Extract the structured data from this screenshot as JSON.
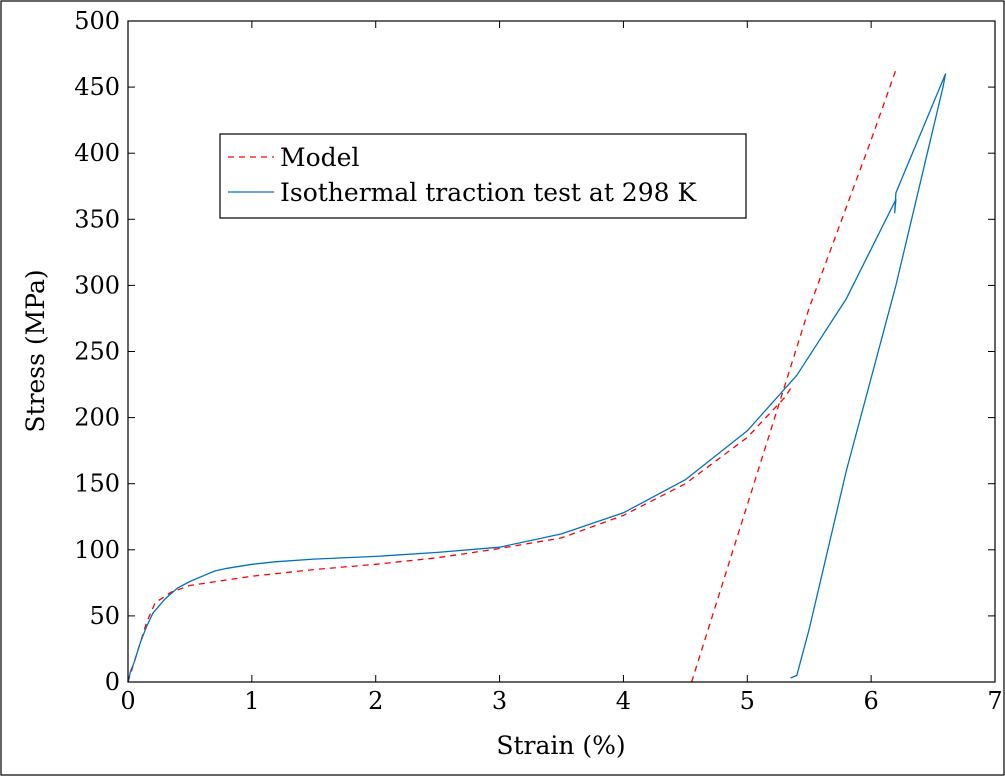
{
  "chart_data": {
    "type": "line",
    "xlabel": "Strain (%)",
    "ylabel": "Stress (MPa)",
    "xlim": [
      0,
      7
    ],
    "ylim": [
      0,
      500
    ],
    "x_ticks": [
      0,
      1,
      2,
      3,
      4,
      5,
      6,
      7
    ],
    "y_ticks": [
      0,
      50,
      100,
      150,
      200,
      250,
      300,
      350,
      400,
      450,
      500
    ],
    "x_tick_labels": [
      "0",
      "1",
      "2",
      "3",
      "4",
      "5",
      "6",
      "7"
    ],
    "y_tick_labels": [
      "0",
      "50",
      "100",
      "150",
      "200",
      "250",
      "300",
      "350",
      "400",
      "450",
      "500"
    ],
    "grid": false,
    "legend_position": "upper-left",
    "series": [
      {
        "name": "Model",
        "color": "#ff0000",
        "style": "dashed",
        "points": [
          [
            0.0,
            0
          ],
          [
            0.05,
            15
          ],
          [
            0.1,
            30
          ],
          [
            0.15,
            45
          ],
          [
            0.22,
            60
          ],
          [
            0.35,
            68
          ],
          [
            0.5,
            73
          ],
          [
            1.0,
            80
          ],
          [
            1.5,
            85
          ],
          [
            2.0,
            89
          ],
          [
            2.5,
            94
          ],
          [
            3.0,
            101
          ],
          [
            3.5,
            109
          ],
          [
            4.0,
            126
          ],
          [
            4.5,
            150
          ],
          [
            5.0,
            185
          ],
          [
            5.3,
            215
          ],
          [
            5.35,
            222
          ],
          [
            4.55,
            0
          ],
          [
            5.0,
            134
          ],
          [
            5.5,
            283
          ],
          [
            6.0,
            410
          ],
          [
            6.2,
            463
          ]
        ]
      },
      {
        "name": "Isothermal traction test at 298 K",
        "color": "#0072bd",
        "style": "solid",
        "points": [
          [
            0.0,
            0
          ],
          [
            0.02,
            8
          ],
          [
            0.05,
            15
          ],
          [
            0.1,
            30
          ],
          [
            0.15,
            42
          ],
          [
            0.2,
            52
          ],
          [
            0.3,
            63
          ],
          [
            0.4,
            71
          ],
          [
            0.5,
            76
          ],
          [
            0.6,
            80
          ],
          [
            0.7,
            84
          ],
          [
            0.8,
            86
          ],
          [
            1.0,
            89
          ],
          [
            1.2,
            91
          ],
          [
            1.5,
            93
          ],
          [
            2.0,
            95
          ],
          [
            2.5,
            98
          ],
          [
            3.0,
            102
          ],
          [
            3.5,
            112
          ],
          [
            4.0,
            128
          ],
          [
            4.5,
            153
          ],
          [
            5.0,
            190
          ],
          [
            5.4,
            232
          ],
          [
            5.8,
            290
          ],
          [
            6.2,
            365
          ],
          [
            6.19,
            355
          ],
          [
            6.2,
            370
          ],
          [
            6.4,
            415
          ],
          [
            6.6,
            460
          ],
          [
            6.58,
            450
          ],
          [
            6.2,
            300
          ],
          [
            5.8,
            160
          ],
          [
            5.5,
            40
          ],
          [
            5.4,
            5
          ],
          [
            5.35,
            3
          ]
        ]
      }
    ]
  }
}
